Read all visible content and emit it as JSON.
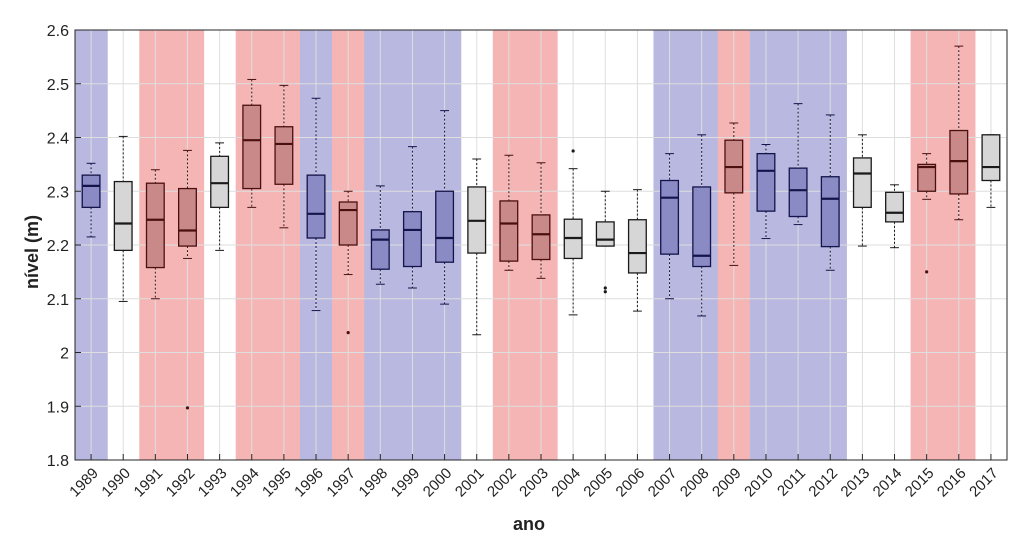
{
  "chart_data": {
    "type": "boxplot",
    "xlabel": "ano",
    "ylabel": "nível (m)",
    "ylim": [
      1.8,
      2.6
    ],
    "yticks": [
      1.8,
      1.9,
      2.0,
      2.1,
      2.2,
      2.3,
      2.4,
      2.5,
      2.6
    ],
    "ytick_labels": [
      "1.8",
      "1.9",
      "2",
      "2.1",
      "2.2",
      "2.3",
      "2.4",
      "2.5",
      "2.6"
    ],
    "grid": true,
    "categories": [
      "1989",
      "1990",
      "1991",
      "1992",
      "1993",
      "1994",
      "1995",
      "1996",
      "1997",
      "1998",
      "1999",
      "2000",
      "2001",
      "2002",
      "2003",
      "2004",
      "2005",
      "2006",
      "2007",
      "2008",
      "2009",
      "2010",
      "2011",
      "2012",
      "2013",
      "2014",
      "2015",
      "2016",
      "2017"
    ],
    "phases": [
      "blue",
      "none",
      "red",
      "red",
      "none",
      "red",
      "red",
      "blue",
      "red",
      "blue",
      "blue",
      "blue",
      "none",
      "red",
      "red",
      "none",
      "none",
      "none",
      "blue",
      "blue",
      "red",
      "blue",
      "blue",
      "blue",
      "none",
      "none",
      "red",
      "red",
      "none"
    ],
    "colors": {
      "red_band": "#f5b5b5",
      "blue_band": "#b8b8e0",
      "red_box": "#c98989",
      "blue_box": "#8a8ac4",
      "none_box": "#d6d6d6",
      "red_line": "#4a1010",
      "blue_line": "#14144a",
      "none_line": "#1a1a1a",
      "grid": "#dedede"
    },
    "boxes": [
      {
        "min": 2.215,
        "q1": 2.27,
        "median": 2.31,
        "q3": 2.33,
        "max": 2.352,
        "outliers": []
      },
      {
        "min": 2.095,
        "q1": 2.19,
        "median": 2.24,
        "q3": 2.318,
        "max": 2.402,
        "outliers": []
      },
      {
        "min": 2.1,
        "q1": 2.158,
        "median": 2.247,
        "q3": 2.315,
        "max": 2.34,
        "outliers": []
      },
      {
        "min": 2.175,
        "q1": 2.198,
        "median": 2.227,
        "q3": 2.305,
        "max": 2.376,
        "outliers": [
          1.897
        ]
      },
      {
        "min": 2.19,
        "q1": 2.27,
        "median": 2.315,
        "q3": 2.365,
        "max": 2.39,
        "outliers": []
      },
      {
        "min": 2.27,
        "q1": 2.305,
        "median": 2.395,
        "q3": 2.46,
        "max": 2.508,
        "outliers": []
      },
      {
        "min": 2.232,
        "q1": 2.313,
        "median": 2.388,
        "q3": 2.42,
        "max": 2.497,
        "outliers": []
      },
      {
        "min": 2.078,
        "q1": 2.213,
        "median": 2.258,
        "q3": 2.33,
        "max": 2.473,
        "outliers": []
      },
      {
        "min": 2.145,
        "q1": 2.2,
        "median": 2.265,
        "q3": 2.28,
        "max": 2.3,
        "outliers": [
          2.037
        ]
      },
      {
        "min": 2.127,
        "q1": 2.155,
        "median": 2.21,
        "q3": 2.228,
        "max": 2.31,
        "outliers": []
      },
      {
        "min": 2.12,
        "q1": 2.16,
        "median": 2.228,
        "q3": 2.262,
        "max": 2.383,
        "outliers": []
      },
      {
        "min": 2.09,
        "q1": 2.168,
        "median": 2.213,
        "q3": 2.3,
        "max": 2.45,
        "outliers": []
      },
      {
        "min": 2.033,
        "q1": 2.185,
        "median": 2.245,
        "q3": 2.308,
        "max": 2.36,
        "outliers": []
      },
      {
        "min": 2.153,
        "q1": 2.17,
        "median": 2.24,
        "q3": 2.282,
        "max": 2.367,
        "outliers": []
      },
      {
        "min": 2.138,
        "q1": 2.173,
        "median": 2.22,
        "q3": 2.256,
        "max": 2.353,
        "outliers": []
      },
      {
        "min": 2.07,
        "q1": 2.175,
        "median": 2.213,
        "q3": 2.248,
        "max": 2.342,
        "outliers": [
          2.375
        ]
      },
      {
        "min": 2.198,
        "q1": 2.198,
        "median": 2.21,
        "q3": 2.243,
        "max": 2.3,
        "outliers": [
          2.113,
          2.12
        ]
      },
      {
        "min": 2.077,
        "q1": 2.148,
        "median": 2.185,
        "q3": 2.247,
        "max": 2.303,
        "outliers": []
      },
      {
        "min": 2.1,
        "q1": 2.183,
        "median": 2.288,
        "q3": 2.32,
        "max": 2.37,
        "outliers": []
      },
      {
        "min": 2.068,
        "q1": 2.16,
        "median": 2.18,
        "q3": 2.308,
        "max": 2.405,
        "outliers": []
      },
      {
        "min": 2.162,
        "q1": 2.297,
        "median": 2.345,
        "q3": 2.395,
        "max": 2.427,
        "outliers": []
      },
      {
        "min": 2.212,
        "q1": 2.263,
        "median": 2.338,
        "q3": 2.37,
        "max": 2.387,
        "outliers": []
      },
      {
        "min": 2.238,
        "q1": 2.253,
        "median": 2.302,
        "q3": 2.343,
        "max": 2.463,
        "outliers": []
      },
      {
        "min": 2.153,
        "q1": 2.197,
        "median": 2.286,
        "q3": 2.327,
        "max": 2.442,
        "outliers": []
      },
      {
        "min": 2.198,
        "q1": 2.27,
        "median": 2.333,
        "q3": 2.362,
        "max": 2.405,
        "outliers": []
      },
      {
        "min": 2.195,
        "q1": 2.243,
        "median": 2.26,
        "q3": 2.298,
        "max": 2.312,
        "outliers": []
      },
      {
        "min": 2.285,
        "q1": 2.3,
        "median": 2.345,
        "q3": 2.35,
        "max": 2.37,
        "outliers": [
          2.15
        ]
      },
      {
        "min": 2.247,
        "q1": 2.295,
        "median": 2.356,
        "q3": 2.413,
        "max": 2.57,
        "outliers": []
      },
      {
        "min": 2.27,
        "q1": 2.32,
        "median": 2.345,
        "q3": 2.405,
        "max": 2.405,
        "outliers": []
      }
    ]
  }
}
